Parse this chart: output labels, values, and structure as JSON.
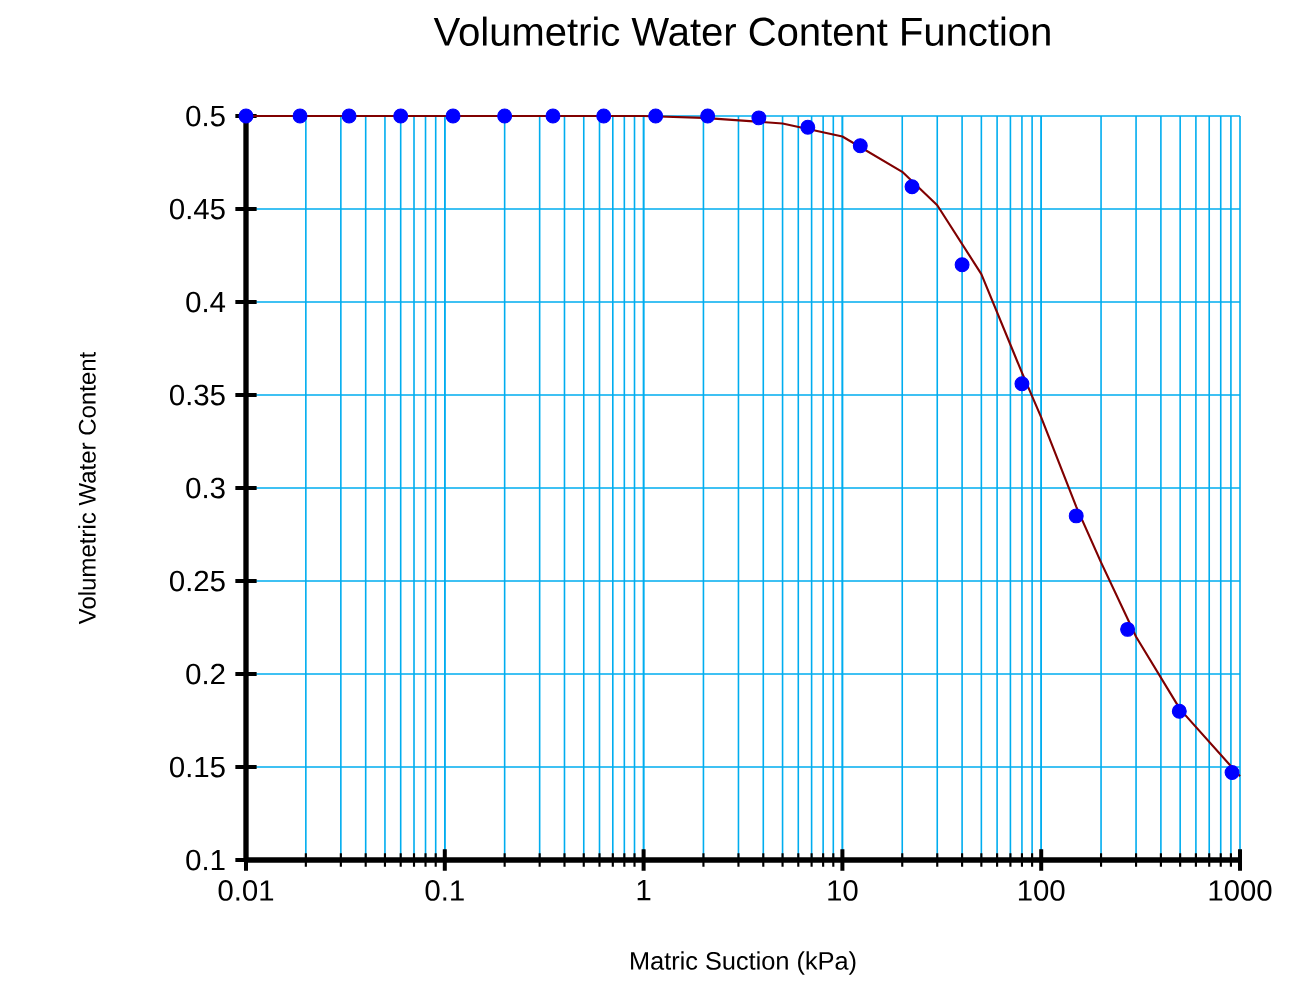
{
  "chart_data": {
    "type": "scatter",
    "title": "Volumetric Water Content Function",
    "xlabel": "Matric Suction (kPa)",
    "ylabel": "Volumetric Water Content",
    "log": "x",
    "grid": true,
    "marker": "circle",
    "xlim": [
      0.01,
      1000
    ],
    "ylim": [
      0.1,
      0.5
    ],
    "xticks": [
      0.01,
      0.1,
      1,
      10,
      100,
      1000
    ],
    "yticks": [
      0.1,
      0.15,
      0.2,
      0.25,
      0.3,
      0.35,
      0.4,
      0.45,
      0.5
    ],
    "series": [
      {
        "type": "line",
        "color": "#800000",
        "line_style": "solid",
        "marker": "none",
        "x": [
          0.01,
          0.1,
          1,
          2,
          5,
          10,
          20,
          30,
          50,
          80,
          100,
          150,
          200,
          300,
          500,
          1000
        ],
        "values": [
          0.5,
          0.5,
          0.5,
          0.499,
          0.496,
          0.489,
          0.47,
          0.452,
          0.415,
          0.362,
          0.338,
          0.29,
          0.26,
          0.22,
          0.181,
          0.145
        ]
      },
      {
        "color": "#0000ff",
        "x": [
          0.01,
          0.0187,
          0.033,
          0.06,
          0.11,
          0.2,
          0.35,
          0.63,
          1.15,
          2.1,
          3.8,
          6.7,
          12.3,
          22.4,
          40,
          80,
          150,
          272,
          495,
          912
        ],
        "values": [
          0.5,
          0.5,
          0.5,
          0.5,
          0.5,
          0.5,
          0.5,
          0.5,
          0.5,
          0.5,
          0.499,
          0.494,
          0.484,
          0.462,
          0.42,
          0.356,
          0.285,
          0.224,
          0.18,
          0.147
        ]
      }
    ]
  }
}
